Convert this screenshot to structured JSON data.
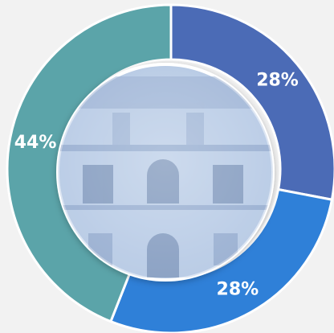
{
  "chart_data": {
    "type": "donut",
    "values": [
      28,
      28,
      44
    ],
    "value_labels": [
      "28%",
      "28%",
      "44%"
    ],
    "colors": [
      "#4b6bb6",
      "#2f80d8",
      "#5ba4a9"
    ]
  }
}
